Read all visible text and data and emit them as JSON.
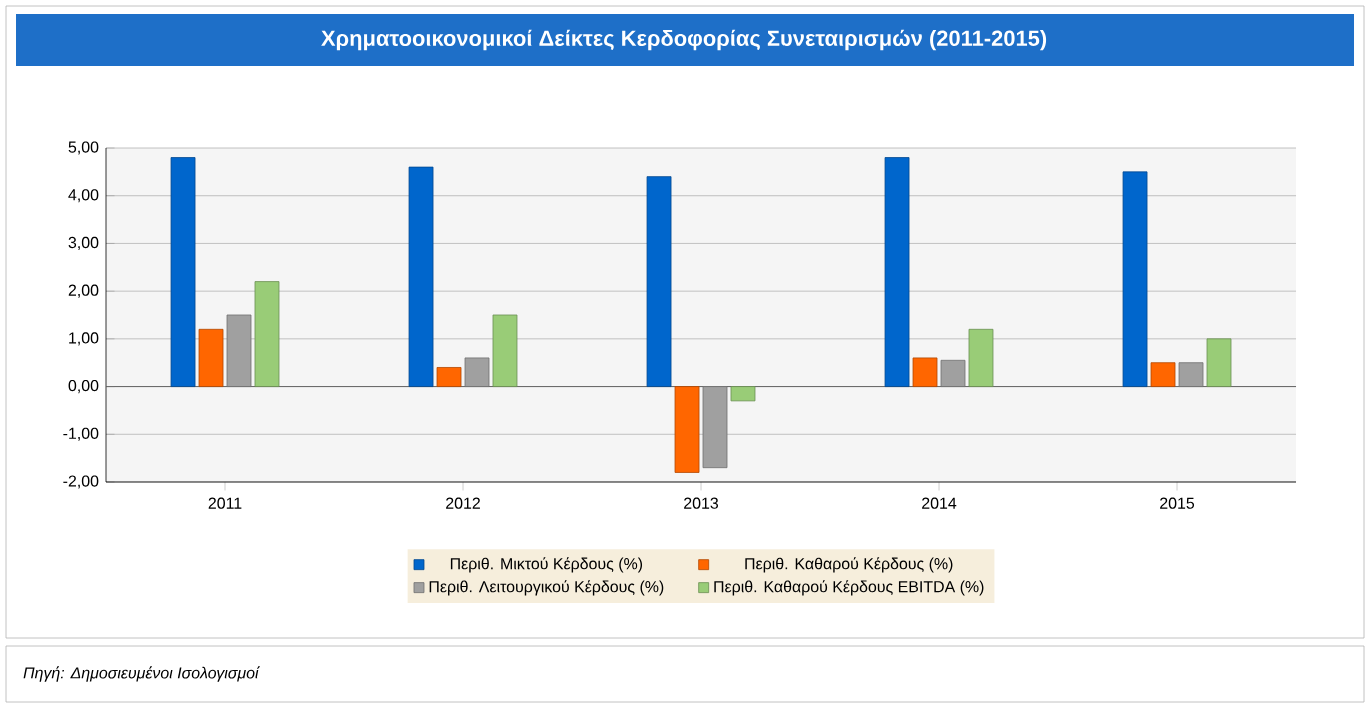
{
  "chart_data": {
    "type": "bar",
    "title": "Χρηματοοικονομικοί Δείκτες Κερδοφορίας Συνεταιρισμών (2011-2015)",
    "categories": [
      "2011",
      "2012",
      "2013",
      "2014",
      "2015"
    ],
    "series": [
      {
        "name": "Περιθ. Μικτού Κέρδους (%)",
        "color": "#0066cc",
        "values": [
          4.8,
          4.6,
          4.4,
          4.8,
          4.5
        ]
      },
      {
        "name": "Περιθ. Καθαρού Κέρδους (%)",
        "color": "#ff6600",
        "values": [
          1.2,
          0.4,
          -1.8,
          0.6,
          0.5
        ]
      },
      {
        "name": "Περιθ. Λειτουργικού Κέρδους (%)",
        "color": "#a0a0a0",
        "values": [
          1.5,
          0.6,
          -1.7,
          0.55,
          0.5
        ]
      },
      {
        "name": "Περιθ. Καθαρού Κέρδους EBITDA (%)",
        "color": "#99cc77",
        "values": [
          2.2,
          1.5,
          -0.3,
          1.2,
          1.0
        ]
      }
    ],
    "ylim": [
      -2,
      5
    ],
    "yticks": [
      {
        "value": -2,
        "label": "-2,00"
      },
      {
        "value": -1,
        "label": "-1,00"
      },
      {
        "value": 0,
        "label": "0,00"
      },
      {
        "value": 1,
        "label": "1,00"
      },
      {
        "value": 2,
        "label": "2,00"
      },
      {
        "value": 3,
        "label": "3,00"
      },
      {
        "value": 4,
        "label": "4,00"
      },
      {
        "value": 5,
        "label": "5,00"
      }
    ],
    "grid": "y",
    "legend": "bottom",
    "annotations": [
      "Πηγή: Δημοσιευμένοι Ισολογισμοί"
    ]
  }
}
